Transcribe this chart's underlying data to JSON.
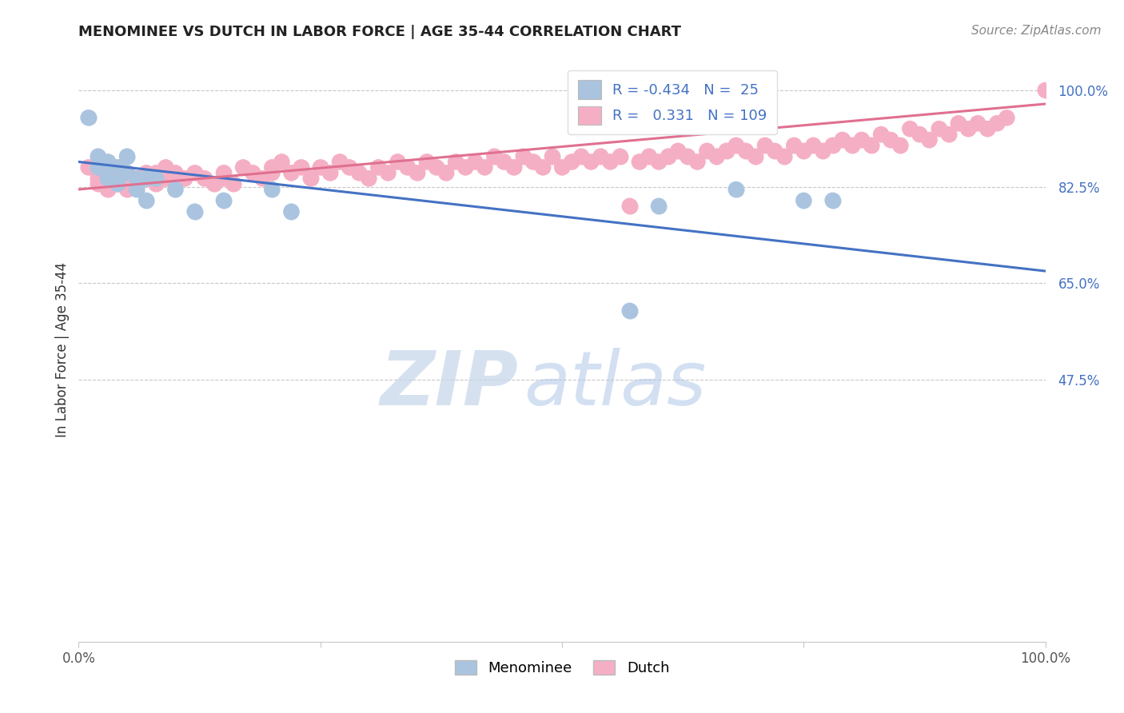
{
  "title": "MENOMINEE VS DUTCH IN LABOR FORCE | AGE 35-44 CORRELATION CHART",
  "source": "Source: ZipAtlas.com",
  "ylabel": "In Labor Force | Age 35-44",
  "legend_labels": [
    "Menominee",
    "Dutch"
  ],
  "menominee_fill": "#aac4e0",
  "dutch_fill": "#f5afc4",
  "menominee_line": "#4472c4",
  "dutch_line": "#e07090",
  "R_menominee": -0.434,
  "N_menominee": 25,
  "R_dutch": 0.331,
  "N_dutch": 109,
  "ytick_vals": [
    0.475,
    0.65,
    0.825,
    1.0
  ],
  "ytick_labels": [
    "47.5%",
    "65.0%",
    "82.5%",
    "100.0%"
  ],
  "xtick_vals": [
    0.0,
    0.25,
    0.5,
    0.75,
    1.0
  ],
  "xtick_labels": [
    "0.0%",
    "",
    "",
    "",
    "100.0%"
  ],
  "menominee_x": [
    0.01,
    0.02,
    0.02,
    0.03,
    0.03,
    0.03,
    0.04,
    0.04,
    0.05,
    0.05,
    0.06,
    0.06,
    0.07,
    0.07,
    0.08,
    0.1,
    0.12,
    0.15,
    0.2,
    0.22,
    0.6,
    0.68,
    0.75,
    0.78,
    0.57
  ],
  "menominee_y": [
    0.95,
    0.88,
    0.86,
    0.87,
    0.85,
    0.84,
    0.86,
    0.83,
    0.88,
    0.85,
    0.84,
    0.82,
    0.84,
    0.8,
    0.84,
    0.82,
    0.78,
    0.8,
    0.82,
    0.78,
    0.79,
    0.82,
    0.8,
    0.8,
    0.6
  ],
  "dutch_x": [
    0.01,
    0.02,
    0.02,
    0.03,
    0.03,
    0.04,
    0.04,
    0.04,
    0.05,
    0.05,
    0.06,
    0.06,
    0.07,
    0.07,
    0.08,
    0.08,
    0.09,
    0.09,
    0.1,
    0.1,
    0.11,
    0.12,
    0.13,
    0.14,
    0.15,
    0.15,
    0.16,
    0.17,
    0.18,
    0.19,
    0.2,
    0.2,
    0.21,
    0.22,
    0.23,
    0.24,
    0.25,
    0.26,
    0.27,
    0.28,
    0.29,
    0.3,
    0.31,
    0.32,
    0.33,
    0.34,
    0.35,
    0.36,
    0.37,
    0.38,
    0.39,
    0.4,
    0.41,
    0.42,
    0.43,
    0.44,
    0.45,
    0.46,
    0.47,
    0.48,
    0.49,
    0.5,
    0.51,
    0.52,
    0.53,
    0.54,
    0.55,
    0.56,
    0.57,
    0.58,
    0.59,
    0.6,
    0.61,
    0.62,
    0.63,
    0.64,
    0.65,
    0.66,
    0.67,
    0.68,
    0.69,
    0.7,
    0.71,
    0.72,
    0.73,
    0.74,
    0.75,
    0.76,
    0.77,
    0.78,
    0.79,
    0.8,
    0.81,
    0.82,
    0.83,
    0.84,
    0.85,
    0.86,
    0.87,
    0.88,
    0.89,
    0.9,
    0.91,
    0.92,
    0.93,
    0.94,
    0.95,
    0.96,
    1.0
  ],
  "dutch_y": [
    0.86,
    0.84,
    0.83,
    0.85,
    0.82,
    0.84,
    0.83,
    0.86,
    0.85,
    0.82,
    0.84,
    0.83,
    0.85,
    0.84,
    0.83,
    0.85,
    0.84,
    0.86,
    0.85,
    0.83,
    0.84,
    0.85,
    0.84,
    0.83,
    0.85,
    0.84,
    0.83,
    0.86,
    0.85,
    0.84,
    0.85,
    0.86,
    0.87,
    0.85,
    0.86,
    0.84,
    0.86,
    0.85,
    0.87,
    0.86,
    0.85,
    0.84,
    0.86,
    0.85,
    0.87,
    0.86,
    0.85,
    0.87,
    0.86,
    0.85,
    0.87,
    0.86,
    0.87,
    0.86,
    0.88,
    0.87,
    0.86,
    0.88,
    0.87,
    0.86,
    0.88,
    0.86,
    0.87,
    0.88,
    0.87,
    0.88,
    0.87,
    0.88,
    0.79,
    0.87,
    0.88,
    0.87,
    0.88,
    0.89,
    0.88,
    0.87,
    0.89,
    0.88,
    0.89,
    0.9,
    0.89,
    0.88,
    0.9,
    0.89,
    0.88,
    0.9,
    0.89,
    0.9,
    0.89,
    0.9,
    0.91,
    0.9,
    0.91,
    0.9,
    0.92,
    0.91,
    0.9,
    0.93,
    0.92,
    0.91,
    0.93,
    0.92,
    0.94,
    0.93,
    0.94,
    0.93,
    0.94,
    0.95,
    1.0
  ],
  "watermark_zip": "ZIP",
  "watermark_atlas": "atlas",
  "blue_line_y0": 0.87,
  "blue_line_y1": 0.672,
  "pink_line_y0": 0.82,
  "pink_line_y1": 0.975
}
